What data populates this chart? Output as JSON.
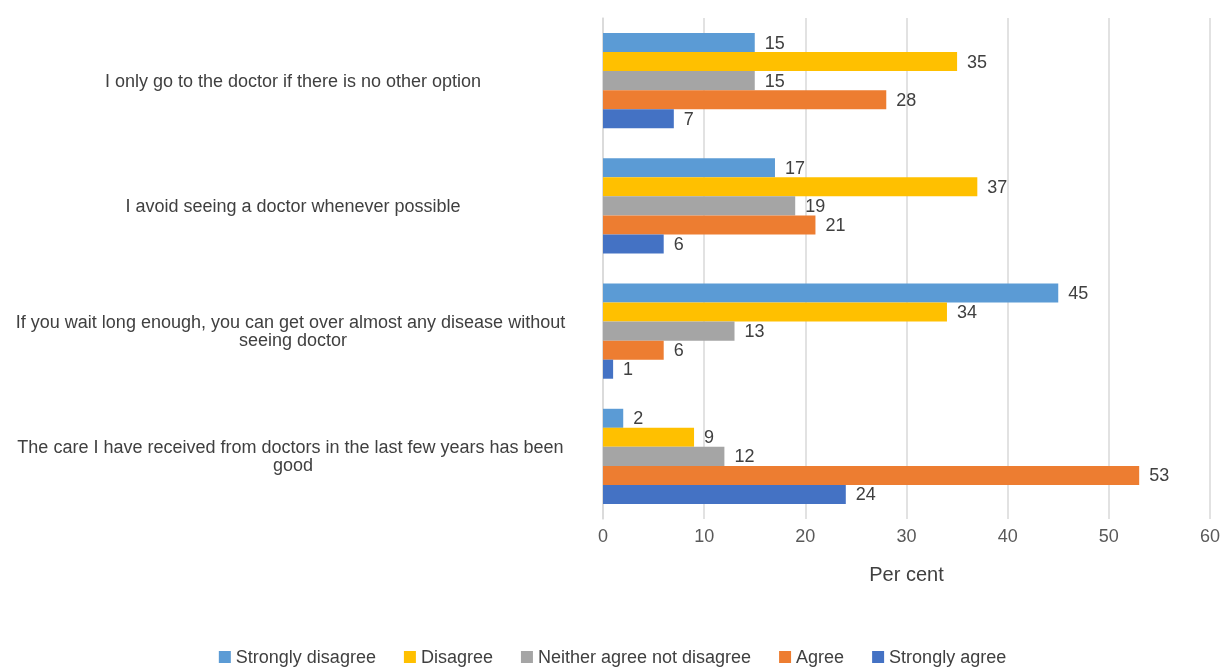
{
  "chart_data": {
    "type": "bar",
    "orientation": "horizontal",
    "xlabel": "Per cent",
    "categories": [
      "I only go to the doctor if there is no other option",
      "I avoid seeing a doctor whenever possible",
      "If you wait long enough, you can get over almost any disease without seeing doctor",
      "The care I have received from doctors in the last few years has been good"
    ],
    "series": [
      {
        "name": "Strongly disagree",
        "color": "#5b9bd5",
        "values": [
          15,
          17,
          45,
          2
        ]
      },
      {
        "name": "Disagree",
        "color": "#ffc000",
        "values": [
          35,
          37,
          34,
          9
        ]
      },
      {
        "name": "Neither agree not disagree",
        "color": "#a5a5a5",
        "values": [
          15,
          19,
          13,
          12
        ]
      },
      {
        "name": "Agree",
        "color": "#ed7d31",
        "values": [
          28,
          21,
          6,
          53
        ]
      },
      {
        "name": "Strongly agree",
        "color": "#4472c4",
        "values": [
          7,
          6,
          1,
          24
        ]
      }
    ],
    "xlim": [
      0,
      60
    ],
    "xticks": [
      0,
      10,
      20,
      30,
      40,
      50,
      60
    ],
    "grid": "x",
    "legend": "bottom",
    "data_labels": true
  }
}
